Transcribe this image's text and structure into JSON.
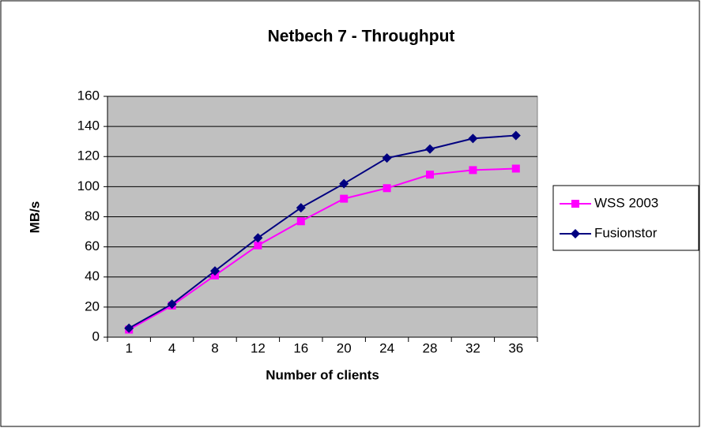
{
  "chart_data": {
    "type": "line",
    "title": "Netbech 7 - Throughput",
    "x_label": "Number of clients",
    "y_label": "MB/s",
    "categories": [
      "1",
      "4",
      "8",
      "12",
      "16",
      "20",
      "24",
      "28",
      "32",
      "36"
    ],
    "series": [
      {
        "name": "WSS 2003",
        "color": "#ff00ff",
        "marker": "square",
        "values": [
          5,
          21,
          41,
          61,
          77,
          92,
          99,
          108,
          111,
          112
        ]
      },
      {
        "name": "Fusionstor",
        "color": "#000080",
        "marker": "diamond",
        "values": [
          6,
          22,
          44,
          66,
          86,
          102,
          119,
          125,
          132,
          134
        ]
      }
    ],
    "ylim": [
      0,
      160
    ],
    "yticks": [
      0,
      20,
      40,
      60,
      80,
      100,
      120,
      140,
      160
    ],
    "grid": true,
    "legend": "right"
  }
}
